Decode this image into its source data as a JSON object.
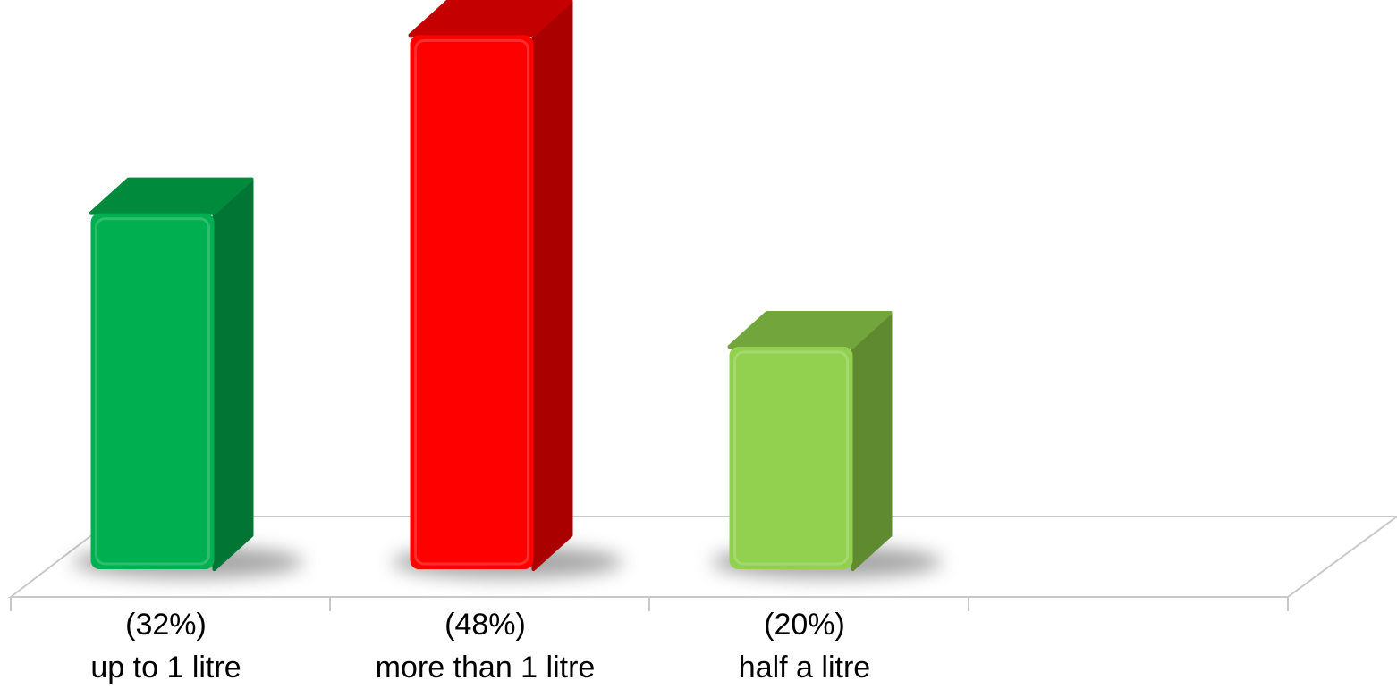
{
  "chart_data": {
    "type": "bar",
    "categories": [
      "(32%)",
      "(48%)",
      "(20%)",
      ""
    ],
    "category_sublabels": [
      "up to 1 litre",
      "more than 1 litre",
      "half a litre",
      ""
    ],
    "values": [
      32,
      48,
      20,
      null
    ],
    "unit": "%",
    "title": "",
    "xlabel": "",
    "ylabel": "",
    "ylim": [
      0,
      50
    ],
    "grid": false,
    "legend": "none",
    "three_d": true,
    "colors": [
      "#00b050",
      "#ff0000",
      "#92d050"
    ],
    "side_colors": [
      "#007534",
      "#aa0000",
      "#5f8a30"
    ],
    "top_colors": [
      "#008a3c",
      "#c40000",
      "#72a63c"
    ]
  }
}
